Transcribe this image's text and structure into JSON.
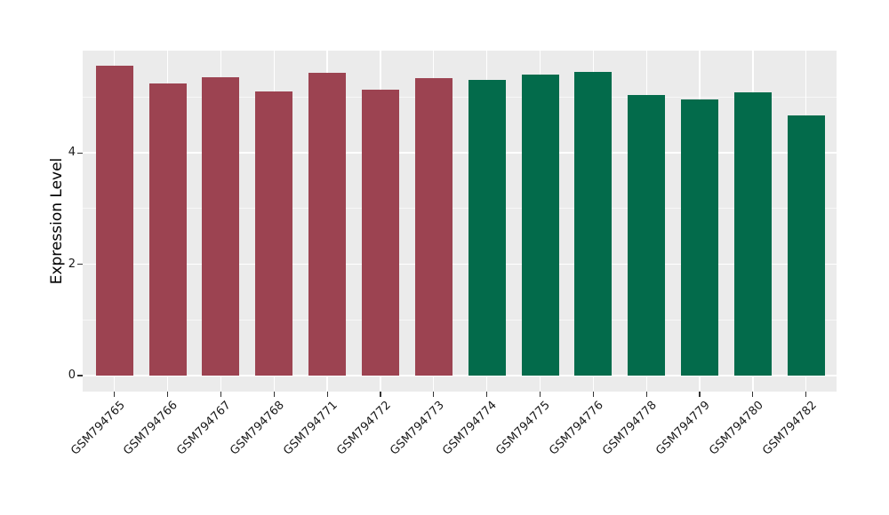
{
  "chart_data": {
    "type": "bar",
    "title": "",
    "xlabel": "",
    "ylabel": "Expression Level",
    "categories": [
      "GSM794765",
      "GSM794766",
      "GSM794767",
      "GSM794768",
      "GSM794771",
      "GSM794772",
      "GSM794773",
      "GSM794774",
      "GSM794775",
      "GSM794776",
      "GSM794778",
      "GSM794779",
      "GSM794780",
      "GSM794782"
    ],
    "values": [
      5.57,
      5.25,
      5.36,
      5.11,
      5.44,
      5.14,
      5.35,
      5.31,
      5.41,
      5.45,
      5.04,
      4.96,
      5.09,
      4.67
    ],
    "bar_colors": [
      "#9C4351",
      "#9C4351",
      "#9C4351",
      "#9C4351",
      "#9C4351",
      "#9C4351",
      "#9C4351",
      "#036B4B",
      "#036B4B",
      "#036B4B",
      "#036B4B",
      "#036B4B",
      "#036B4B",
      "#036B4B"
    ],
    "group_colors": {
      "left_group": "#9C4351",
      "right_group": "#036B4B"
    },
    "yticks": [
      0,
      2,
      4
    ],
    "minor_yticks": [
      1,
      3,
      5
    ],
    "ylim": [
      -0.29,
      5.84
    ],
    "bar_width_fraction": 0.7,
    "panel_bg": "#EBEBEB",
    "figure_bg": "#FFFFFF",
    "grid_color": "#FFFFFF",
    "axis_text_color": "#1a1a1a",
    "tick_mark_color": "#333333",
    "legend_position": "none",
    "grid": "major horizontal+vertical white, minor horizontal faint white"
  }
}
